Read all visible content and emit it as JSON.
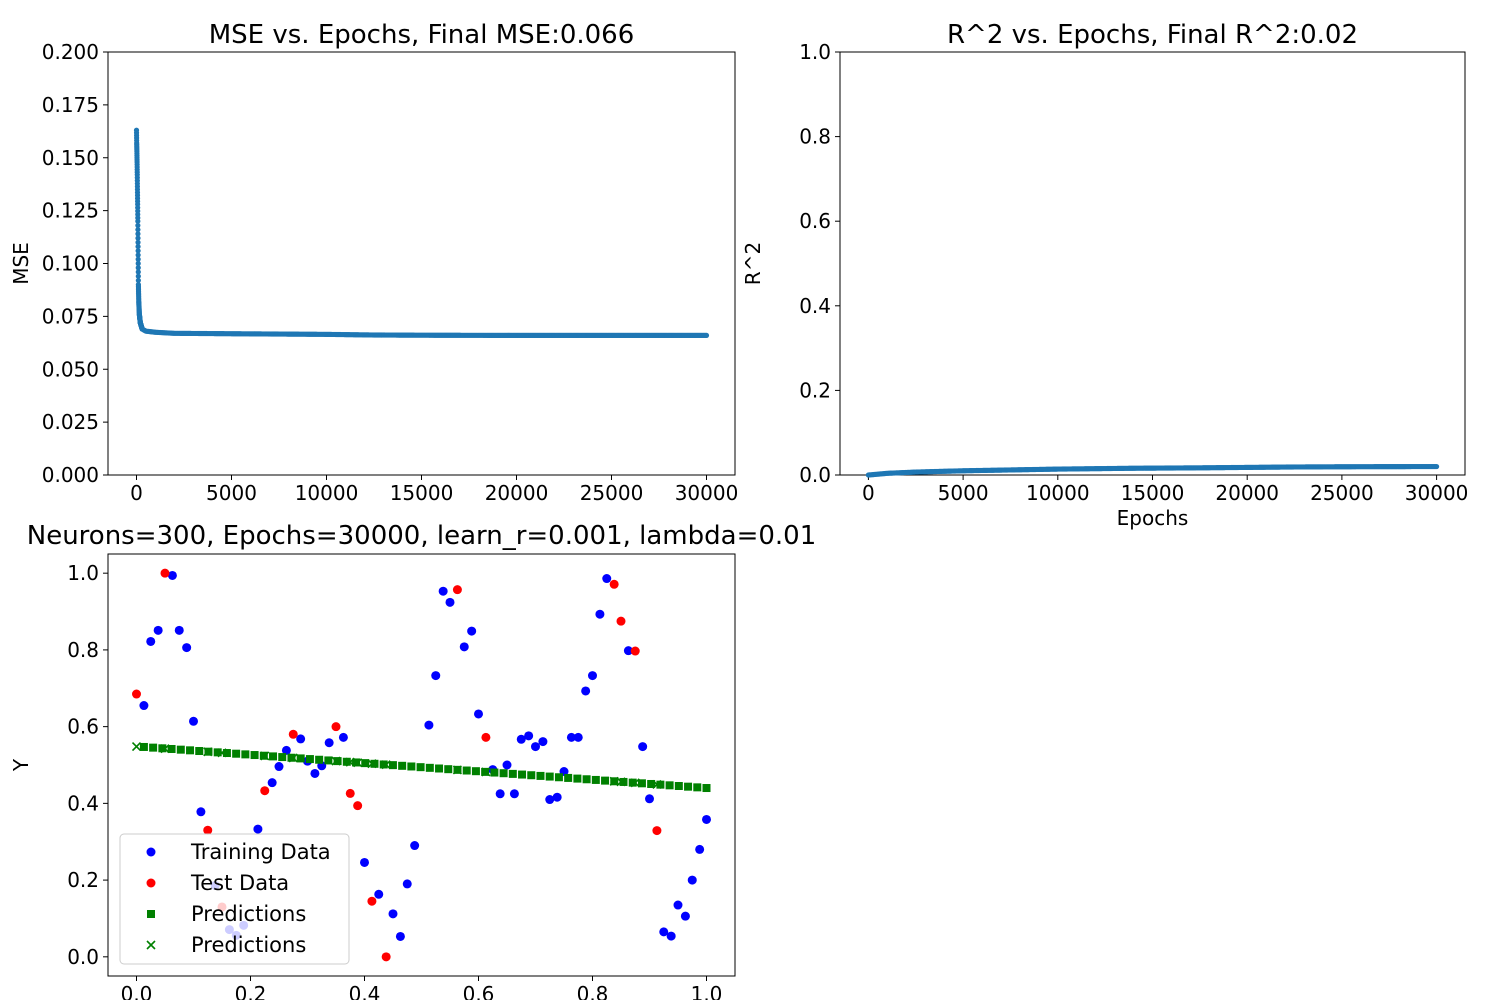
{
  "chart_data": [
    {
      "type": "scatter",
      "title": "MSE vs. Epochs, Final MSE:0.066",
      "xlabel": "",
      "ylabel": "MSE",
      "xlim": [
        -1500,
        31500
      ],
      "ylim": [
        0,
        0.2
      ],
      "xticks": [
        0,
        5000,
        10000,
        15000,
        20000,
        25000,
        30000
      ],
      "yticks": [
        "0.000",
        "0.025",
        "0.050",
        "0.075",
        "0.100",
        "0.125",
        "0.150",
        "0.175",
        "0.200"
      ],
      "color": "#1f77b4",
      "series": [
        {
          "x": [
            0,
            10,
            20,
            30,
            40,
            50,
            60,
            70,
            80,
            90,
            100,
            120,
            150,
            200,
            300,
            500,
            1000,
            2000,
            5000,
            10000,
            12500,
            15000,
            20000,
            25000,
            30000
          ],
          "y": [
            0.163,
            0.157,
            0.153,
            0.148,
            0.142,
            0.135,
            0.128,
            0.12,
            0.11,
            0.1,
            0.09,
            0.082,
            0.076,
            0.072,
            0.069,
            0.068,
            0.0675,
            0.067,
            0.0668,
            0.0665,
            0.0662,
            0.0661,
            0.066,
            0.066,
            0.066
          ]
        }
      ]
    },
    {
      "type": "scatter",
      "title": "R^2 vs. Epochs, Final R^2:0.02",
      "xlabel": "Epochs",
      "ylabel": "R^2",
      "xlim": [
        -1500,
        31500
      ],
      "ylim": [
        0,
        1.0
      ],
      "xticks": [
        0,
        5000,
        10000,
        15000,
        20000,
        25000,
        30000
      ],
      "yticks": [
        "0.0",
        "0.2",
        "0.4",
        "0.6",
        "0.8",
        "1.0"
      ],
      "color": "#1f77b4",
      "series": [
        {
          "x": [
            0,
            1000,
            2500,
            5000,
            7500,
            10000,
            14000,
            17500,
            20000,
            22500,
            25000,
            27500,
            30000
          ],
          "y": [
            0.0,
            0.004,
            0.007,
            0.01,
            0.012,
            0.014,
            0.016,
            0.017,
            0.018,
            0.019,
            0.0195,
            0.0198,
            0.02
          ]
        }
      ]
    },
    {
      "type": "scatter",
      "title": "Neurons=300, Epochs=30000, learn_r=0.001, lambda=0.01",
      "xlabel": "",
      "ylabel": "Y",
      "xlim": [
        -0.05,
        1.05
      ],
      "ylim": [
        -0.05,
        1.05
      ],
      "xticks": [
        "0.0",
        "0.2",
        "0.4",
        "0.6",
        "0.8",
        "1.0"
      ],
      "yticks": [
        "0.0",
        "0.2",
        "0.4",
        "0.6",
        "0.8",
        "1.0"
      ],
      "legend_position": "lower-left",
      "series": [
        {
          "name": "Training Data",
          "marker": "circle",
          "color": "#0000ff",
          "x": [
            0.013,
            0.025,
            0.038,
            0.063,
            0.075,
            0.088,
            0.1,
            0.113,
            0.138,
            0.163,
            0.175,
            0.188,
            0.213,
            0.238,
            0.25,
            0.263,
            0.288,
            0.3,
            0.313,
            0.325,
            0.338,
            0.363,
            0.4,
            0.425,
            0.45,
            0.463,
            0.475,
            0.488,
            0.513,
            0.525,
            0.538,
            0.55,
            0.575,
            0.588,
            0.6,
            0.625,
            0.638,
            0.65,
            0.663,
            0.675,
            0.688,
            0.7,
            0.713,
            0.725,
            0.738,
            0.75,
            0.763,
            0.775,
            0.788,
            0.8,
            0.813,
            0.825,
            0.863,
            0.888,
            0.9,
            0.925,
            0.938,
            0.95,
            0.963,
            0.975,
            0.988,
            1.0
          ],
          "y": [
            0.655,
            0.822,
            0.851,
            0.994,
            0.851,
            0.806,
            0.614,
            0.378,
            0.186,
            0.071,
            0.056,
            0.082,
            0.333,
            0.454,
            0.496,
            0.538,
            0.568,
            0.51,
            0.478,
            0.498,
            0.558,
            0.572,
            0.246,
            0.163,
            0.112,
            0.053,
            0.19,
            0.29,
            0.604,
            0.733,
            0.953,
            0.924,
            0.808,
            0.849,
            0.633,
            0.488,
            0.425,
            0.5,
            0.425,
            0.567,
            0.576,
            0.548,
            0.561,
            0.41,
            0.416,
            0.483,
            0.572,
            0.572,
            0.693,
            0.733,
            0.893,
            0.986,
            0.798,
            0.548,
            0.412,
            0.065,
            0.054,
            0.135,
            0.106,
            0.2,
            0.28,
            0.358
          ]
        },
        {
          "name": "Test Data",
          "marker": "circle",
          "color": "#ff0000",
          "x": [
            0.0,
            0.05,
            0.125,
            0.15,
            0.225,
            0.275,
            0.35,
            0.375,
            0.388,
            0.413,
            0.438,
            0.563,
            0.613,
            0.838,
            0.85,
            0.875,
            0.913
          ],
          "y": [
            0.685,
            1.0,
            0.33,
            0.13,
            0.433,
            0.58,
            0.6,
            0.426,
            0.394,
            0.145,
            0.0,
            0.957,
            0.572,
            0.971,
            0.875,
            0.797,
            0.329
          ]
        },
        {
          "name": "Predictions",
          "marker": "square",
          "color": "#008000",
          "x_start": 0.013,
          "x_end": 1.0,
          "y_start": 0.547,
          "y_end": 0.44,
          "count": 62
        },
        {
          "name": "Predictions",
          "marker": "x",
          "color": "#008000",
          "x": [
            0.0,
            0.05,
            0.125,
            0.15,
            0.225,
            0.275,
            0.35,
            0.375,
            0.388,
            0.413,
            0.438,
            0.563,
            0.613,
            0.838,
            0.85,
            0.875,
            0.913
          ],
          "y_start": 0.548,
          "y_end": 0.44
        }
      ]
    }
  ]
}
